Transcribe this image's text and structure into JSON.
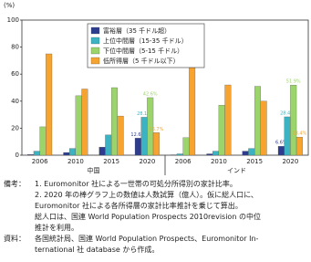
{
  "chart_data": {
    "type": "grouped-bar",
    "y_unit": "(%)",
    "categories": [
      "2006",
      "2010",
      "2015",
      "2020",
      "2006",
      "2010",
      "2015",
      "2020"
    ],
    "groups": [
      "中国",
      "インド"
    ],
    "ylim": [
      0,
      100
    ],
    "yticks": [
      0,
      20,
      40,
      60,
      80,
      100
    ],
    "grid": false,
    "series": [
      {
        "name": "富裕層（35 千ドル超）",
        "color": "#2d3c8e",
        "values": [
          0.5,
          2,
          6,
          12.6,
          0.3,
          1,
          3,
          6.6
        ],
        "value_labels": [
          null,
          null,
          null,
          "12.6%",
          null,
          null,
          null,
          "6.6%"
        ]
      },
      {
        "name": "上位中間層（15-35 千ドル）",
        "color": "#3bb3c3",
        "values": [
          3,
          5,
          15,
          28.1,
          1,
          3,
          5,
          28.4
        ],
        "value_labels": [
          null,
          null,
          null,
          "28.1%",
          null,
          null,
          null,
          "28.4%"
        ]
      },
      {
        "name": "下位中間層（5-15 千ドル）",
        "color": "#9bd46a",
        "values": [
          21,
          44,
          50,
          42.6,
          13,
          37,
          51,
          51.9
        ],
        "value_labels": [
          null,
          null,
          null,
          "42.6%",
          null,
          null,
          null,
          "51.9%"
        ]
      },
      {
        "name": "低所得層（5 千ドル以下）",
        "color": "#f6a330",
        "values": [
          75,
          49,
          29,
          16.7,
          79,
          52,
          40,
          13.4
        ],
        "value_labels": [
          null,
          null,
          null,
          "16.7%",
          null,
          null,
          null,
          "13.4%"
        ]
      }
    ],
    "legend": "upper-center"
  },
  "notes": [
    {
      "label": "備考：",
      "lines": [
        "1.  Euromonitor 社による一世帯の可処分所得別の家計比率。",
        "2.  2020 年の棒グラフ上の数値は人数試算（億人）。仮に総人口に、",
        "     Euromonitor 社による各所得層の家計比率推計を乗じて算出。",
        "     総人口は、国連 World Population  Prospects 2010revision の中位",
        "     推計を利用。"
      ]
    },
    {
      "label": "資料：",
      "lines": [
        "各国統計局、国連 World Population Prospects、Euromonitor In-",
        "ternational 社 database から作成。"
      ]
    }
  ]
}
